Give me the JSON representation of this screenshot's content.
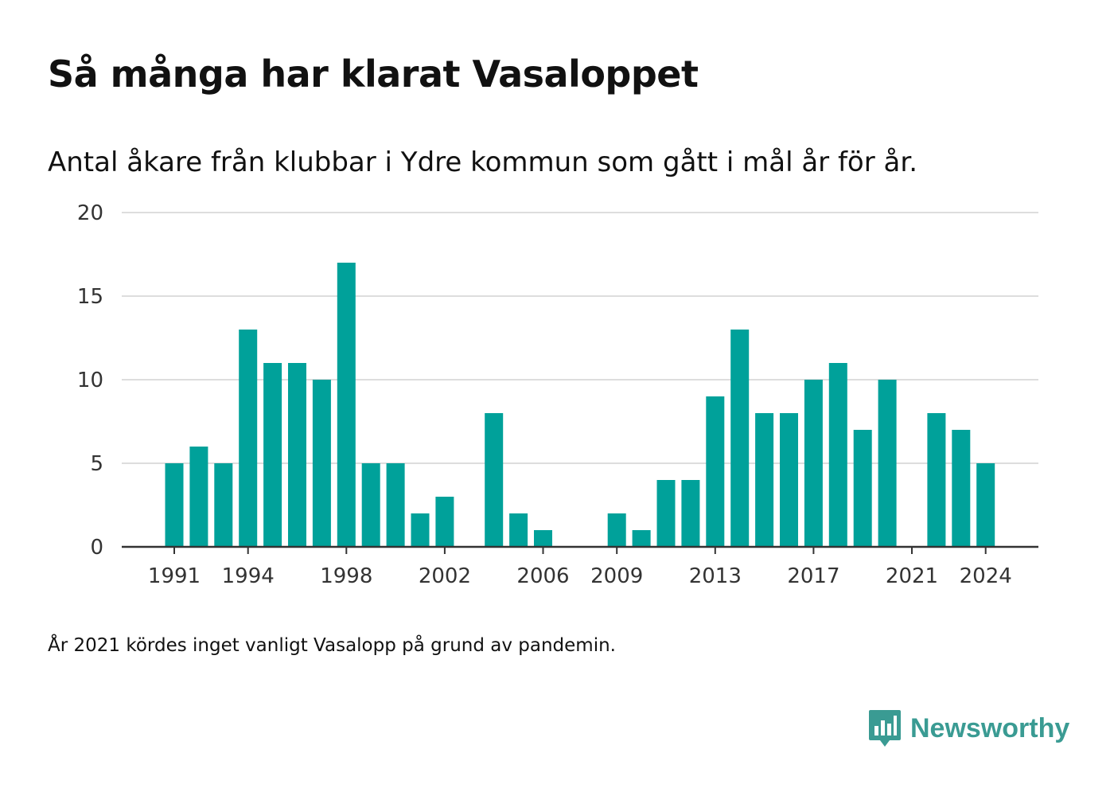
{
  "title": "Så många har klarat Vasaloppet",
  "subtitle": "Antal åkare från klubbar i Ydre kommun som gått i mål år för år.",
  "note": "År 2021 kördes inget vanligt Vasalopp på grund av pandemin.",
  "brand": {
    "name": "Newsworthy",
    "icon": "newsworthy-logo-icon",
    "color": "#3a9b93"
  },
  "chart_data": {
    "type": "bar",
    "title": "Så många har klarat Vasaloppet",
    "subtitle": "Antal åkare från klubbar i Ydre kommun som gått i mål år för år.",
    "xlabel": "",
    "ylabel": "",
    "color": "#00a19a",
    "ylim": [
      0,
      20
    ],
    "yticks": [
      0,
      5,
      10,
      15,
      20
    ],
    "xticks": [
      1991,
      1994,
      1998,
      2002,
      2006,
      2009,
      2013,
      2017,
      2021,
      2024
    ],
    "grid": true,
    "legend": "none",
    "categories": [
      1991,
      1992,
      1993,
      1994,
      1995,
      1996,
      1997,
      1998,
      1999,
      2000,
      2001,
      2002,
      2003,
      2004,
      2005,
      2006,
      2007,
      2008,
      2009,
      2010,
      2011,
      2012,
      2013,
      2014,
      2015,
      2016,
      2017,
      2018,
      2019,
      2020,
      2021,
      2022,
      2023,
      2024
    ],
    "values": [
      5,
      6,
      5,
      13,
      11,
      11,
      10,
      17,
      5,
      5,
      2,
      3,
      0,
      8,
      2,
      1,
      0,
      0,
      2,
      1,
      4,
      4,
      9,
      13,
      8,
      8,
      10,
      11,
      7,
      10,
      0,
      8,
      7,
      5
    ]
  }
}
